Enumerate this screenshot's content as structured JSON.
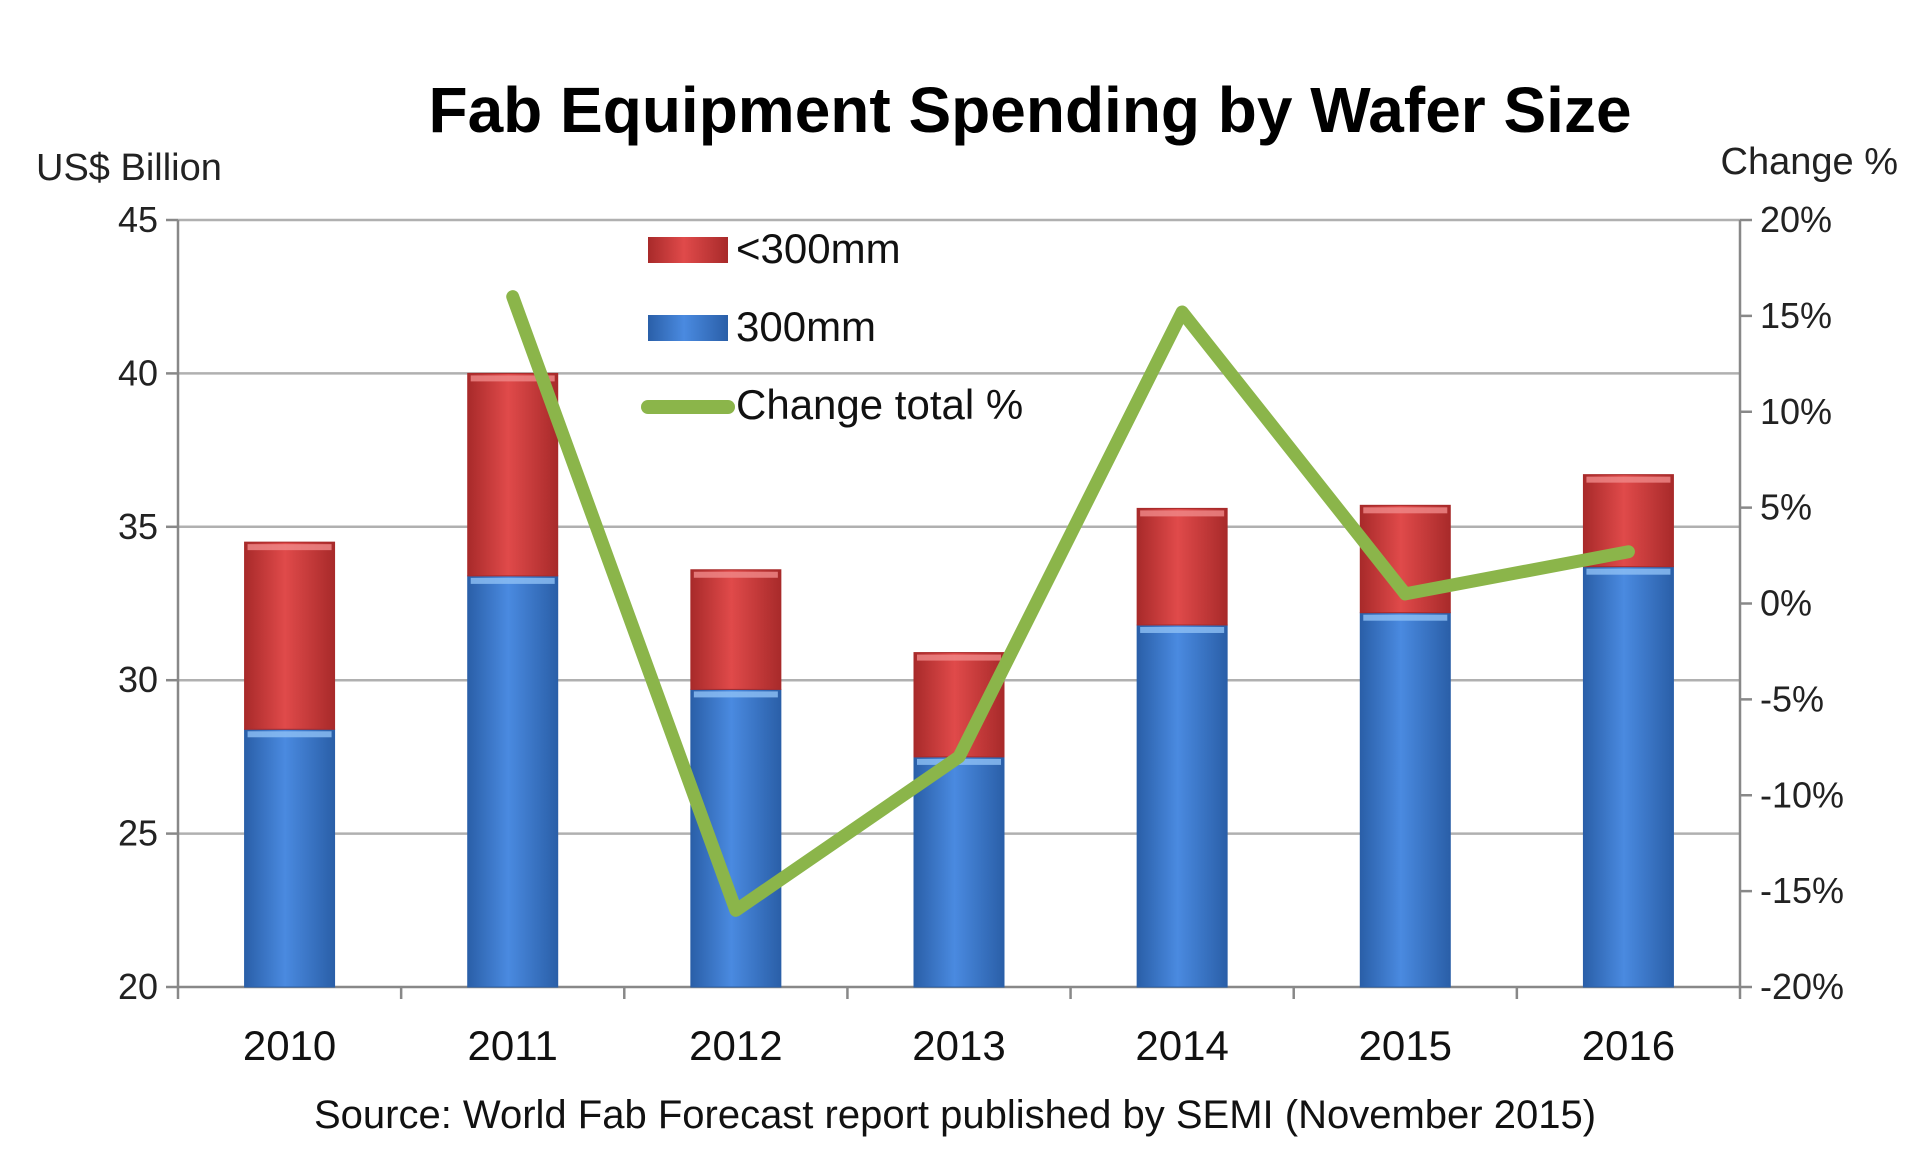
{
  "chart_data": {
    "type": "bar",
    "title": "Fab Equipment Spending by Wafer Size",
    "ylabel_left": "US$ Billion",
    "ylabel_right": "Change %",
    "source": "Source: World Fab Forecast report published by SEMI (November 2015)",
    "categories": [
      "2010",
      "2011",
      "2012",
      "2013",
      "2014",
      "2015",
      "2016"
    ],
    "ylim_left": [
      20,
      45
    ],
    "yticks_left": [
      "20",
      "25",
      "30",
      "35",
      "40",
      "45"
    ],
    "ylim_right": [
      -20,
      20
    ],
    "yticks_right": [
      "-20%",
      "-15%",
      "-10%",
      "-5%",
      "0%",
      "5%",
      "10%",
      "15%",
      "20%"
    ],
    "series": [
      {
        "name": "300mm",
        "kind": "stacked-bar",
        "color": "#3a78cc",
        "values": [
          28.4,
          33.4,
          29.7,
          27.5,
          31.8,
          32.2,
          33.7
        ]
      },
      {
        "name": "<300mm",
        "kind": "stacked-bar",
        "color": "#c83c3c",
        "values": [
          6.1,
          6.6,
          3.9,
          3.4,
          3.8,
          3.5,
          3.0
        ]
      },
      {
        "name": "Change total %",
        "kind": "line",
        "axis": "right",
        "color": "#8bb54a",
        "x": [
          "2011",
          "2012",
          "2013",
          "2014",
          "2015",
          "2016"
        ],
        "values": [
          16,
          -16,
          -8,
          15.2,
          0.5,
          2.7
        ]
      }
    ],
    "legend": [
      "<300mm",
      "300mm",
      "Change total %"
    ],
    "grid": true
  }
}
